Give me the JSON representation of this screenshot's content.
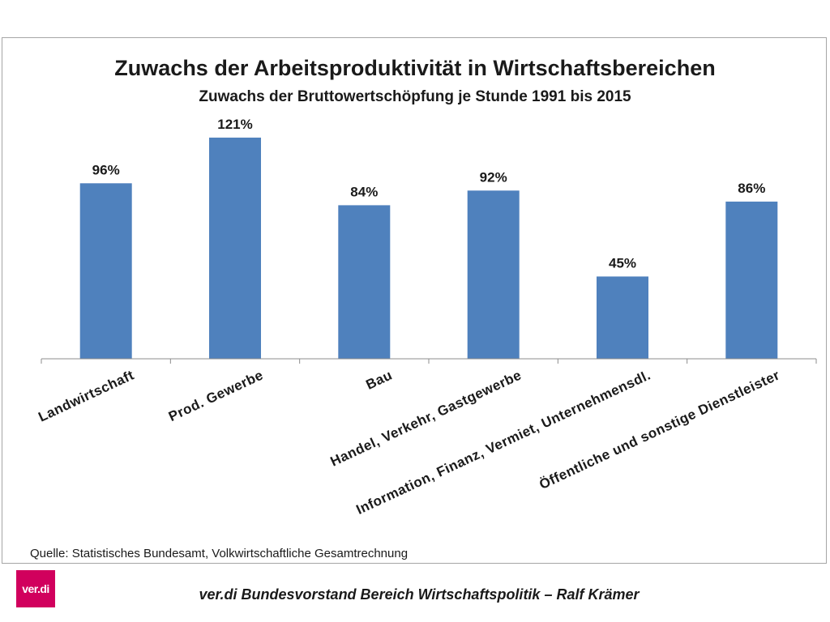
{
  "chart_data": {
    "type": "bar",
    "title": "Zuwachs der Arbeitsproduktivität in Wirtschaftsbereichen",
    "subtitle": "Zuwachs der Bruttowertschöpfung je Stunde 1991 bis 2015",
    "categories": [
      "Landwirtschaft",
      "Prod. Gewerbe",
      "Bau",
      "Handel, Verkehr, Gastgewerbe",
      "Information,  Finanz, Vermiet, Unternehmensdl.",
      "Öffentliche und sonstige Dienstleister"
    ],
    "values": [
      96,
      121,
      84,
      92,
      45,
      86
    ],
    "data_labels": [
      "96%",
      "121%",
      "84%",
      "92%",
      "45%",
      "86%"
    ],
    "unit": "%",
    "ylim": [
      0,
      140
    ],
    "grid": false,
    "bar_color": "#4f81bd",
    "source": "Quelle: Statistisches Bundesamt, Volkwirtschaftliche Gesamtrechnung"
  },
  "footer": {
    "logo_text": "ver.di",
    "text": "ver.di Bundesvorstand Bereich Wirtschaftspolitik – Ralf Krämer"
  },
  "colors": {
    "brand": "#d1005d"
  }
}
